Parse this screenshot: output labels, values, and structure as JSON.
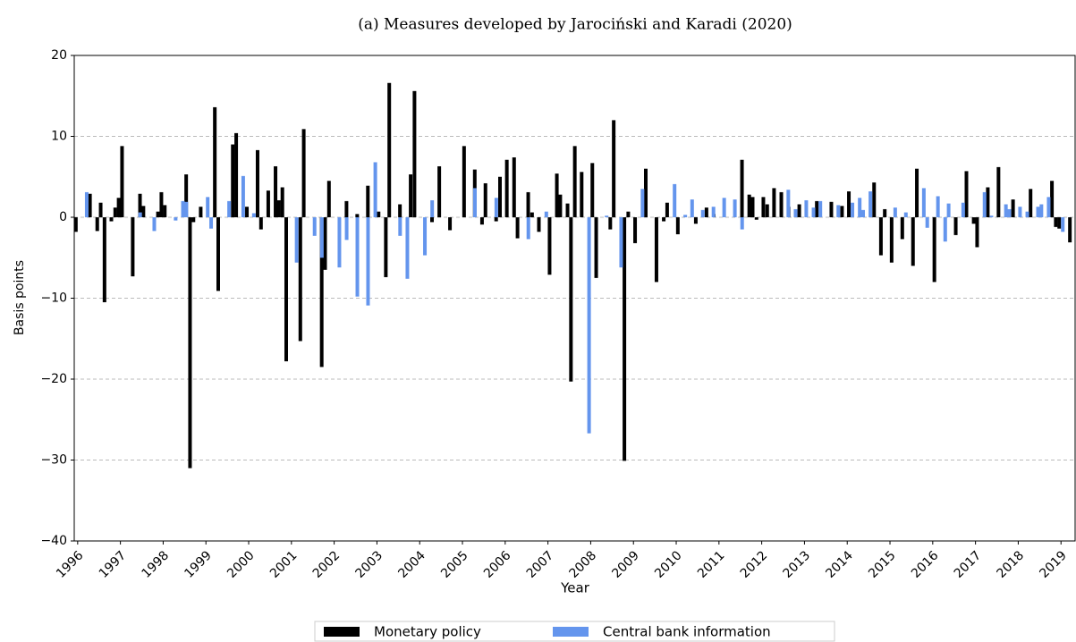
{
  "chart_data": {
    "type": "bar",
    "title": "(a)  Measures developed by Jarociński and Karadi (2020)",
    "xlabel": "Year",
    "ylabel": "Basis points",
    "xlim": [
      1995.92,
      2019.33
    ],
    "xticks": [
      1996,
      1997,
      1998,
      1999,
      2000,
      2001,
      2002,
      2003,
      2004,
      2005,
      2006,
      2007,
      2008,
      2009,
      2010,
      2011,
      2012,
      2013,
      2014,
      2015,
      2016,
      2017,
      2018,
      2019
    ],
    "ylim": [
      -40,
      20
    ],
    "yticks": [
      {
        "value": -40,
        "label": "−40"
      },
      {
        "value": -30,
        "label": "−30"
      },
      {
        "value": -20,
        "label": "−20"
      },
      {
        "value": -10,
        "label": "−10"
      },
      0,
      10,
      20
    ],
    "grid": true,
    "legend": "bottom",
    "series": [
      {
        "name": "Monetary policy",
        "color": "#000000",
        "x": [
          1996.0,
          1996.33,
          1996.5,
          1996.58,
          1996.67,
          1996.83,
          1996.92,
          1997.0,
          1997.08,
          1997.33,
          1997.5,
          1997.58,
          1997.92,
          1998.0,
          1998.08,
          1998.58,
          1998.67,
          1998.75,
          1998.92,
          1999.25,
          1999.33,
          1999.67,
          1999.75,
          2000.0,
          2000.25,
          2000.33,
          2000.5,
          2000.67,
          2000.75,
          2000.83,
          2000.92,
          2001.25,
          2001.33,
          2001.75,
          2001.83,
          2001.92,
          2002.33,
          2002.58,
          2002.83,
          2003.08,
          2003.25,
          2003.33,
          2003.58,
          2003.83,
          2003.92,
          2004.33,
          2004.5,
          2004.75,
          2005.08,
          2005.33,
          2005.5,
          2005.58,
          2005.83,
          2005.92,
          2006.08,
          2006.25,
          2006.33,
          2006.58,
          2006.67,
          2006.83,
          2007.08,
          2007.25,
          2007.33,
          2007.5,
          2007.58,
          2007.67,
          2007.83,
          2008.08,
          2008.17,
          2008.5,
          2008.58,
          2008.83,
          2008.92,
          2009.08,
          2009.33,
          2009.58,
          2009.75,
          2009.83,
          2010.08,
          2010.5,
          2010.75,
          2010.92,
          2011.58,
          2011.75,
          2011.83,
          2011.92,
          2012.08,
          2012.17,
          2012.33,
          2012.5,
          2012.67,
          2012.92,
          2013.33,
          2013.67,
          2013.92,
          2014.08,
          2014.67,
          2014.83,
          2014.92,
          2015.08,
          2015.33,
          2015.58,
          2015.67,
          2016.08,
          2016.58,
          2016.83,
          2017.0,
          2017.08,
          2017.33,
          2017.58,
          2017.92,
          2018.33,
          2018.83,
          2018.92,
          2019.0,
          2019.25
        ],
        "values": [
          -1.8,
          2.9,
          -1.7,
          1.8,
          -10.5,
          -0.5,
          1.2,
          2.4,
          8.8,
          -7.3,
          2.9,
          1.4,
          0.7,
          3.1,
          1.5,
          5.3,
          -31,
          -0.6,
          1.3,
          13.6,
          -9.1,
          9.0,
          10.4,
          1.3,
          8.3,
          -1.5,
          3.3,
          6.3,
          2.1,
          3.7,
          -17.8,
          -15.3,
          10.9,
          -18.5,
          -6.5,
          4.5,
          2.0,
          0.4,
          3.9,
          0.7,
          -7.4,
          16.6,
          1.6,
          5.3,
          15.6,
          -0.6,
          6.3,
          -1.6,
          8.8,
          5.9,
          -0.9,
          4.2,
          -0.5,
          5.0,
          7.1,
          7.4,
          -2.6,
          3.1,
          0.6,
          -1.8,
          -7.1,
          5.4,
          2.8,
          1.7,
          -20.3,
          8.8,
          5.6,
          6.7,
          -7.5,
          -1.5,
          12.0,
          -30.1,
          0.7,
          -3.2,
          6.0,
          -8.0,
          -0.5,
          1.8,
          -2.1,
          -0.8,
          1.2,
          0.4,
          7.1,
          2.8,
          2.5,
          -0.3,
          2.5,
          1.6,
          3.6,
          3.1,
          1.3,
          1.6,
          2.0,
          1.9,
          1.4,
          3.2,
          4.3,
          -4.7,
          1.0,
          -5.6,
          -2.7,
          -6.0,
          6.0,
          -8.0,
          -2.2,
          5.7,
          -0.8,
          -3.7,
          3.7,
          6.2,
          2.2,
          3.5,
          4.5,
          -1.2,
          -1.4,
          -3.1
        ]
      },
      {
        "name": "Central bank information",
        "color": "#6495ed",
        "x": [
          1996.17,
          1997.42,
          1997.75,
          1998.25,
          1998.42,
          1998.5,
          1999.0,
          1999.08,
          1999.5,
          1999.83,
          2000.08,
          2001.08,
          2001.5,
          2001.67,
          2002.08,
          2002.25,
          2002.5,
          2002.75,
          2002.92,
          2003.5,
          2003.67,
          2004.08,
          2004.25,
          2005.25,
          2005.75,
          2006.5,
          2006.92,
          2007.92,
          2008.33,
          2008.67,
          2009.17,
          2009.92,
          2010.17,
          2010.33,
          2010.58,
          2010.83,
          2011.08,
          2011.33,
          2011.5,
          2012.58,
          2012.75,
          2013.0,
          2013.17,
          2013.33,
          2013.75,
          2014.08,
          2014.25,
          2014.33,
          2014.5,
          2015.08,
          2015.33,
          2015.75,
          2015.83,
          2016.08,
          2016.25,
          2016.33,
          2016.67,
          2017.17,
          2017.33,
          2017.67,
          2017.75,
          2018.0,
          2018.17,
          2018.42,
          2018.5,
          2018.67,
          2019.0
        ],
        "values": [
          3.1,
          0.6,
          -1.7,
          -0.4,
          2.0,
          1.9,
          2.5,
          -1.4,
          2.0,
          5.1,
          0.5,
          -5.6,
          -2.3,
          -5.0,
          -6.2,
          -2.8,
          -9.8,
          -10.9,
          6.8,
          -2.3,
          -7.6,
          -4.7,
          2.1,
          3.6,
          2.4,
          -2.7,
          0.7,
          -26.7,
          0.2,
          -6.2,
          3.5,
          4.1,
          0.3,
          2.2,
          0.9,
          1.3,
          2.4,
          2.2,
          -1.5,
          3.4,
          1.0,
          2.1,
          1.2,
          2.0,
          1.5,
          1.8,
          2.4,
          0.9,
          3.2,
          1.2,
          0.6,
          3.6,
          -1.3,
          2.6,
          -3.0,
          1.7,
          1.8,
          3.1,
          0.2,
          1.6,
          1.0,
          1.3,
          0.7,
          1.3,
          1.6,
          2.5,
          -1.8
        ]
      }
    ]
  }
}
